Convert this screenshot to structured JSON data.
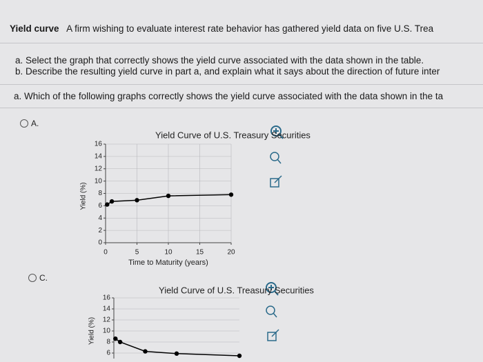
{
  "header": {
    "title": "Yield curve",
    "text": "A firm wishing to evaluate interest rate behavior has gathered yield data on five U.S. Trea"
  },
  "instructions": [
    {
      "label": "a.",
      "text": "Select the graph that correctly shows the yield curve associated with the data shown in the table."
    },
    {
      "label": "b.",
      "text": "Describe the resulting yield curve in part a, and explain what it says about the direction of future inter"
    }
  ],
  "question": {
    "label": "a.",
    "text": "Which of the following graphs correctly shows the yield curve associated with the data shown in the ta"
  },
  "options": [
    {
      "label": "A.",
      "chart": {
        "type": "line",
        "title": "Yield Curve of U.S. Treasury Securities",
        "x_label": "Time to Maturity (years)",
        "y_label": "Yield (%)",
        "x": [
          0.25,
          1,
          5,
          10,
          20
        ],
        "values": [
          6.2,
          6.7,
          6.9,
          7.6,
          7.8
        ],
        "color": "#000000",
        "xlim": [
          0,
          20
        ],
        "xticks": [
          0,
          5,
          10,
          15,
          20
        ],
        "ylim": [
          0,
          16
        ],
        "yticks": [
          0,
          2,
          4,
          6,
          8,
          10,
          12,
          14,
          16
        ],
        "grid": true
      }
    },
    {
      "label": "C.",
      "chart": {
        "type": "line",
        "title": "Yield Curve of U.S. Treasury Securities",
        "y_label": "Yield (%)",
        "x": [
          0.25,
          1,
          5,
          10,
          20
        ],
        "values": [
          8.6,
          8.0,
          6.3,
          5.9,
          5.5
        ],
        "color": "#000000",
        "xlim": [
          0,
          20
        ],
        "ylim": [
          5,
          16
        ],
        "yticks": [
          6,
          8,
          10,
          12,
          14,
          16
        ],
        "grid": true
      }
    }
  ]
}
